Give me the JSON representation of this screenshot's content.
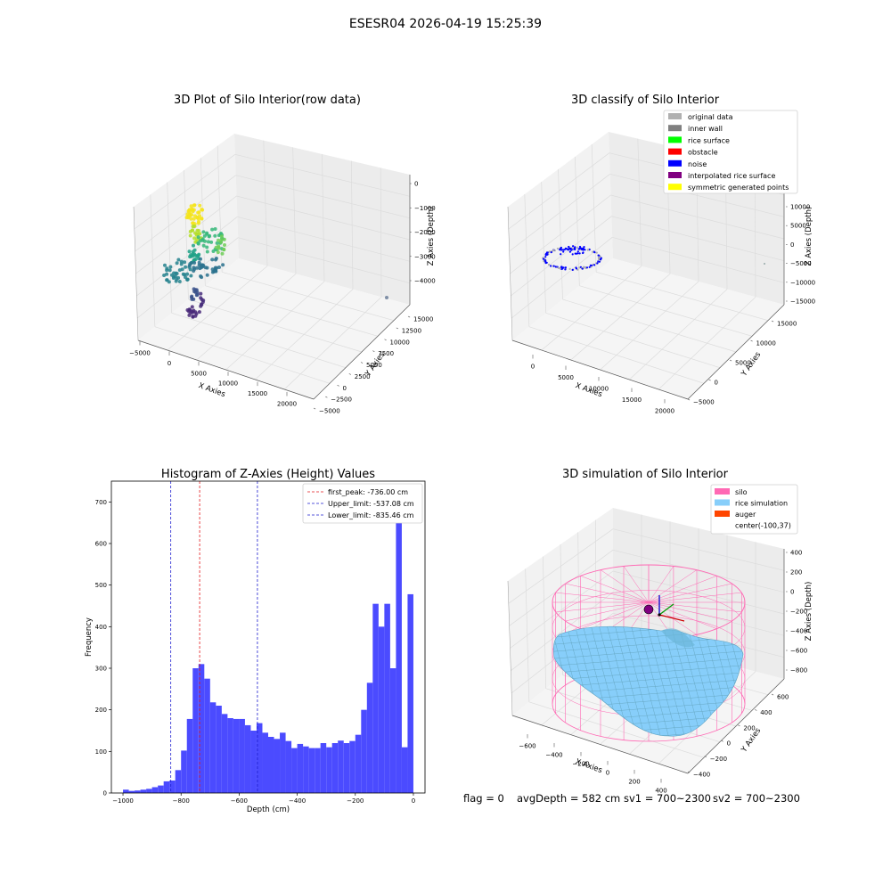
{
  "suptitle": "ESESR04 2026-04-19 15:25:39",
  "colors": {
    "hist_bar": "#4b4bff",
    "peak_line": "#e41a1c",
    "limit_line": "#1f1fd0",
    "silo": "#ff69b4",
    "rice": "#87cefa",
    "auger": "#ff4500"
  },
  "chart_data": [
    {
      "type": "scatter",
      "title": "3D Plot of Silo Interior(row data)",
      "xlabel": "X Axies",
      "ylabel": "Y Axies",
      "zlabel": "Z Axies (Depth)",
      "xticks": [
        "−5000",
        "0",
        "5000",
        "10000",
        "15000",
        "20000"
      ],
      "yticks": [
        "−5000",
        "−2500",
        "0",
        "2500",
        "5000",
        "7500",
        "10000",
        "12500",
        "15000"
      ],
      "zticks": [
        "−4000",
        "−3000",
        "−2000",
        "−1000",
        "0"
      ]
    },
    {
      "type": "scatter",
      "title": "3D classify of Silo Interior",
      "xlabel": "X Axies",
      "ylabel": "Y Axies",
      "zlabel": "Z Axies (Depth)",
      "xticks": [
        "0",
        "5000",
        "10000",
        "15000",
        "20000"
      ],
      "yticks": [
        "−5000",
        "0",
        "5000",
        "10000",
        "15000"
      ],
      "zticks": [
        "−15000",
        "−10000",
        "−5000",
        "0",
        "5000",
        "10000"
      ],
      "legend": [
        {
          "label": "original data",
          "color": "#b0b0b0"
        },
        {
          "label": "inner wall",
          "color": "#808080"
        },
        {
          "label": "rice surface",
          "color": "#00ff00"
        },
        {
          "label": "obstacle",
          "color": "#ff0000"
        },
        {
          "label": "noise",
          "color": "#0000ff"
        },
        {
          "label": "interpolated rice surface",
          "color": "#800080"
        },
        {
          "label": "symmetric generated points",
          "color": "#ffff00"
        }
      ]
    },
    {
      "type": "bar",
      "title": "Histogram of Z-Axies (Height) Values",
      "xlabel": "Depth (cm)",
      "ylabel": "Frequency",
      "xlim": [
        -1040,
        40
      ],
      "ylim": [
        0,
        750
      ],
      "bin_start": -1000,
      "bin_width": 20,
      "values": [
        8,
        5,
        6,
        8,
        10,
        14,
        18,
        28,
        30,
        55,
        102,
        178,
        300,
        310,
        275,
        218,
        210,
        190,
        180,
        178,
        178,
        163,
        150,
        168,
        145,
        135,
        130,
        145,
        125,
        108,
        118,
        112,
        108,
        108,
        120,
        110,
        120,
        126,
        120,
        125,
        140,
        200,
        265,
        455,
        400,
        455,
        300,
        720,
        110,
        478
      ],
      "xticks": [
        -1000,
        -800,
        -600,
        -400,
        -200,
        0
      ],
      "xtick_labels": [
        "−1000",
        "−800",
        "−600",
        "−400",
        "−200",
        "0"
      ],
      "yticks": [
        0,
        100,
        200,
        300,
        400,
        500,
        600,
        700
      ],
      "lines": [
        {
          "x": -736.0,
          "style": "peak",
          "label": "first_peak: -736.00 cm"
        },
        {
          "x": -537.08,
          "style": "limit",
          "label": "Upper_limit: -537.08 cm"
        },
        {
          "x": -835.46,
          "style": "limit",
          "label": "Lower_limit: -835.46 cm"
        }
      ],
      "legend_position": "upper right"
    },
    {
      "type": "surface",
      "title": "3D simulation of Silo Interior",
      "xlabel": "X Axies",
      "ylabel": "Y Axies",
      "zlabel": "Z Axies (Depth)",
      "xticks": [
        "−600",
        "−400",
        "−200",
        "0",
        "200",
        "400"
      ],
      "yticks": [
        "−400",
        "−200",
        "0",
        "200",
        "400",
        "600"
      ],
      "zticks": [
        "−800",
        "−600",
        "−400",
        "−200",
        "0",
        "200",
        "400"
      ],
      "legend": [
        {
          "label": "silo",
          "color": "#ff69b4"
        },
        {
          "label": "rice simulation",
          "color": "#87cefa"
        },
        {
          "label": "auger",
          "color": "#ff4500"
        },
        {
          "label": "center(-100,37)",
          "color": ""
        }
      ]
    }
  ],
  "footer": {
    "flag": "flag = 0",
    "avg": "avgDepth = 582 cm",
    "sv1": "sv1 = 700~2300",
    "sv2": "sv2 = 700~2300"
  }
}
